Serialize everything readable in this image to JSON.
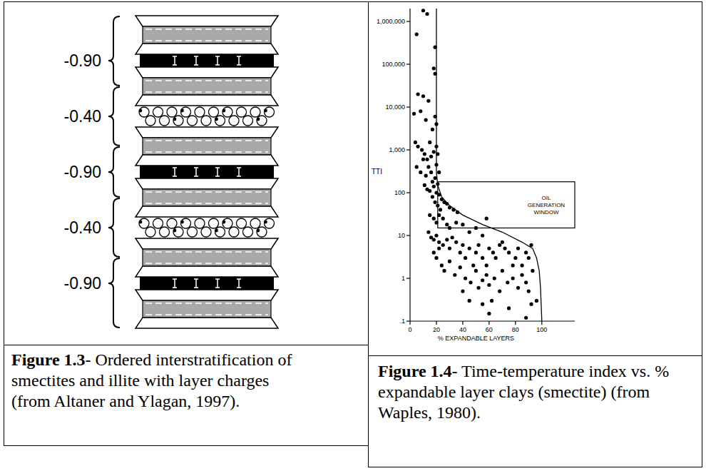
{
  "diagram": {
    "layer_charges": [
      "-0.90",
      "-0.40",
      "-0.90",
      "-0.40",
      "-0.90"
    ]
  },
  "chart_data": {
    "type": "scatter",
    "ylabel": "TTI",
    "xlabel": "% EXPANDABLE LAYERS",
    "log": "y",
    "grid": false,
    "xlim": [
      0,
      125
    ],
    "xticks": [
      0,
      20,
      40,
      60,
      80,
      100
    ],
    "ylim": [
      0.1,
      2000000
    ],
    "yticks": [
      {
        "value": 0.1,
        "label": ".1"
      },
      1,
      10,
      100,
      {
        "value": 1000,
        "label": "1,000"
      },
      {
        "value": 10000,
        "label": "10,000"
      },
      {
        "value": 100000,
        "label": "100,000"
      },
      {
        "value": 1000000,
        "label": "1,000,000"
      }
    ],
    "annotations": [
      {
        "text": "OIL GENERATION WINDOW",
        "x": [
          21,
          125
        ],
        "y": [
          15,
          180
        ]
      }
    ],
    "series": [
      {
        "type": "scatter",
        "marker": "circle",
        "color": "#000000",
        "x": [
          5,
          10,
          13,
          19,
          18,
          19,
          6,
          10,
          3,
          8,
          12,
          14,
          17,
          19,
          20,
          4,
          6,
          9,
          11,
          13,
          15,
          16,
          18,
          20,
          21,
          5,
          8,
          10,
          12,
          14,
          16,
          17,
          19,
          20,
          21,
          22,
          11,
          13,
          15,
          18,
          20,
          22,
          24,
          26,
          28,
          30,
          33,
          36,
          17,
          19,
          21,
          23,
          15,
          18,
          20,
          22,
          25,
          28,
          30,
          35,
          40,
          45,
          50,
          55,
          58,
          14,
          16,
          18,
          20,
          22,
          25,
          28,
          30,
          32,
          35,
          38,
          40,
          42,
          45,
          48,
          50,
          52,
          55,
          58,
          60,
          63,
          65,
          68,
          70,
          72,
          75,
          78,
          80,
          82,
          85,
          88,
          90,
          92,
          18,
          20,
          22,
          24,
          26,
          30,
          34,
          38,
          42,
          46,
          50,
          52,
          55,
          58,
          60,
          64,
          68,
          70,
          74,
          78,
          82,
          85,
          88,
          90,
          93,
          45,
          55,
          60,
          62,
          75,
          88,
          92,
          96,
          40
        ],
        "values": [
          500000,
          1800000,
          1500000,
          250000,
          80000,
          60000,
          20000,
          18000,
          7000,
          8000,
          5000,
          14000,
          3000,
          6000,
          4000,
          1500,
          1200,
          1000,
          800,
          600,
          1500,
          700,
          900,
          1200,
          800,
          400,
          300,
          600,
          250,
          400,
          300,
          180,
          220,
          450,
          160,
          300,
          150,
          120,
          110,
          140,
          100,
          90,
          70,
          60,
          55,
          45,
          40,
          35,
          80,
          60,
          50,
          40,
          30,
          25,
          20,
          30,
          25,
          18,
          15,
          20,
          18,
          12,
          15,
          10,
          25,
          12,
          9,
          8,
          10,
          7,
          6,
          8,
          5,
          9,
          7,
          4,
          6,
          3,
          5,
          2,
          4,
          6,
          3,
          2,
          5,
          4,
          3,
          6,
          7,
          5,
          4,
          2,
          3,
          5,
          2,
          4,
          3,
          6,
          4,
          3,
          5,
          2,
          1.5,
          2.5,
          1.2,
          1.8,
          1,
          0.8,
          1.5,
          0.6,
          0.9,
          1.2,
          0.7,
          1,
          0.5,
          1.5,
          0.8,
          1,
          0.6,
          1.2,
          0.8,
          0.5,
          1.5,
          0.3,
          0.25,
          0.15,
          0.3,
          0.2,
          0.12,
          0.25,
          0.3,
          0.5
        ]
      },
      {
        "type": "line",
        "line_style": "solid",
        "color": "#000000",
        "x": [
          20,
          20,
          21,
          24,
          30,
          40,
          55,
          70,
          85,
          93,
          96,
          98,
          99,
          100
        ],
        "values": [
          2000000,
          300,
          150,
          80,
          50,
          30,
          18,
          12,
          7,
          5,
          3,
          1.5,
          0.6,
          0.1
        ]
      }
    ]
  },
  "captions": [
    {
      "label": "Figure 1.3",
      "text": "- Ordered interstratification of smectites and illite with layer charges (from Altaner and Ylagan, 1997)."
    },
    {
      "label": "Figure 1.4",
      "text": "- Time-temperature index vs. % expandable layer clays (smectite) (from Waples, 1980)."
    }
  ]
}
